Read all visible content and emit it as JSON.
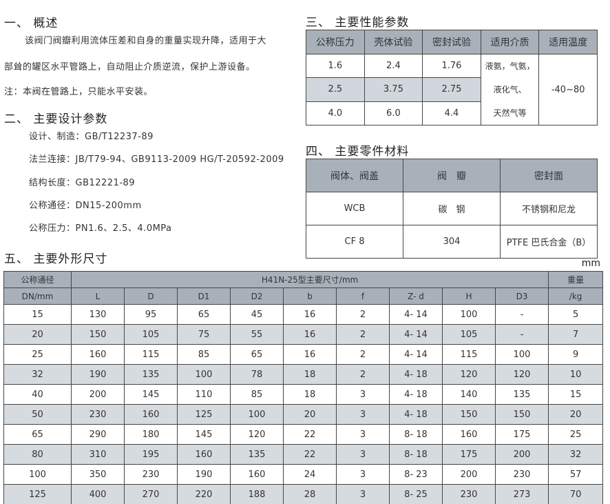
{
  "s1": {
    "title": "一、 概述",
    "p1": "该阀门阀瓣利用流体压差和自身的重量实现升降，适用于大",
    "p2": "部耸的罐区水平管路上，自动阻止介质逆流，保护上游设备。",
    "note": "注：本阀在管路上，只能水平安装。"
  },
  "s2": {
    "title": "二、 主要设计参数",
    "items": [
      "设计、制造：GB/T12237-89",
      "法兰连接：JB/T79-94、GB9113-2009 HG/T-20592-2009",
      "结构长度：GB12221-89",
      "公称通径：DN15-200mm",
      "公称压力：PN1.6、2.5、4.0MPa"
    ]
  },
  "s3": {
    "title": "三、 主要性能参数",
    "headers": [
      "公称压力",
      "壳体试验",
      "密封试验",
      "适用介质",
      "适用温度"
    ],
    "rows": [
      [
        "1.6",
        "2.4",
        "1.76"
      ],
      [
        "2.5",
        "3.75",
        "2.75"
      ],
      [
        "4.0",
        "6.0",
        "4.4"
      ]
    ],
    "medium": [
      "液氨，气氨，",
      "液化气、",
      "天然气等"
    ],
    "temp": "-40~80"
  },
  "s4": {
    "title": "四、 主要零件材料",
    "headers": [
      "阀体、阀盖",
      "阀　瓣",
      "密封面"
    ],
    "rows": [
      [
        "WCB",
        "碳　钢",
        "不锈钢和尼龙"
      ],
      [
        "CF 8",
        "304",
        "PTFE 巴氏合金（B）"
      ]
    ]
  },
  "s5": {
    "title": "五、 主要外形尺寸",
    "unit": "mm",
    "dn_header": [
      "公称通径",
      "DN/mm"
    ],
    "group_header": "H41N-25型主要尺寸/mm",
    "weight_header": [
      "重量",
      "/kg"
    ],
    "cols": [
      "L",
      "D",
      "D1",
      "D2",
      "b",
      "f",
      "Z- d",
      "H",
      "D3"
    ],
    "rows": [
      [
        "15",
        "130",
        "95",
        "65",
        "45",
        "16",
        "2",
        "4- 14",
        "100",
        "-",
        "5"
      ],
      [
        "20",
        "150",
        "105",
        "75",
        "55",
        "16",
        "2",
        "4- 14",
        "105",
        "-",
        "7"
      ],
      [
        "25",
        "160",
        "115",
        "85",
        "65",
        "16",
        "2",
        "4- 14",
        "115",
        "100",
        "9"
      ],
      [
        "32",
        "190",
        "135",
        "100",
        "78",
        "18",
        "2",
        "4- 18",
        "120",
        "120",
        "10"
      ],
      [
        "40",
        "200",
        "145",
        "110",
        "85",
        "18",
        "3",
        "4- 18",
        "140",
        "135",
        "15"
      ],
      [
        "50",
        "230",
        "160",
        "125",
        "100",
        "20",
        "3",
        "4- 18",
        "150",
        "150",
        "20"
      ],
      [
        "65",
        "290",
        "180",
        "145",
        "120",
        "22",
        "3",
        "8- 18",
        "160",
        "175",
        "25"
      ],
      [
        "80",
        "310",
        "195",
        "160",
        "135",
        "22",
        "3",
        "8- 18",
        "175",
        "200",
        "32"
      ],
      [
        "100",
        "350",
        "230",
        "190",
        "160",
        "24",
        "3",
        "8- 23",
        "200",
        "230",
        "57"
      ],
      [
        "125",
        "400",
        "270",
        "220",
        "188",
        "28",
        "3",
        "8- 25",
        "230",
        "273",
        "70"
      ]
    ]
  },
  "colors": {
    "header_bg": "#a8b1ba",
    "stripe": "#d6dbe0"
  }
}
